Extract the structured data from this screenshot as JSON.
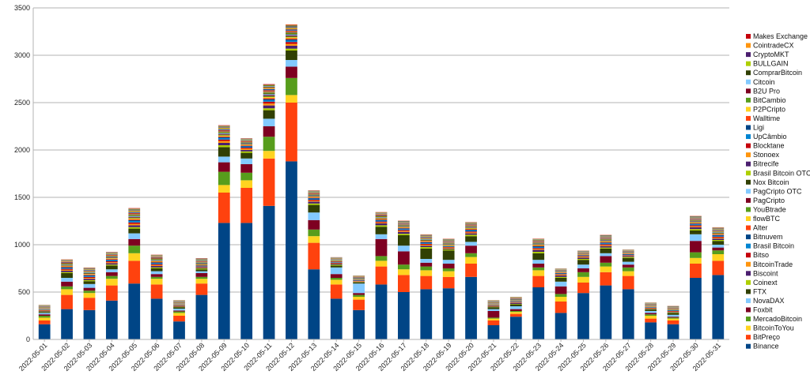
{
  "chart_data": {
    "type": "bar",
    "stacked": true,
    "title": "",
    "xlabel": "",
    "ylabel": "",
    "ylim": [
      0,
      3500
    ],
    "yticks": [
      0,
      500,
      1000,
      1500,
      2000,
      2500,
      3000,
      3500
    ],
    "grid": true,
    "legend_position": "right",
    "categories": [
      "2022-05-01",
      "2022-05-02",
      "2022-05-03",
      "2022-05-04",
      "2022-05-05",
      "2022-05-06",
      "2022-05-07",
      "2022-05-08",
      "2022-05-09",
      "2022-05-10",
      "2022-05-11",
      "2022-05-12",
      "2022-05-13",
      "2022-05-14",
      "2022-05-15",
      "2022-05-16",
      "2022-05-17",
      "2022-05-18",
      "2022-05-19",
      "2022-05-20",
      "2022-05-21",
      "2022-05-22",
      "2022-05-23",
      "2022-05-24",
      "2022-05-25",
      "2022-05-26",
      "2022-05-27",
      "2022-05-28",
      "2022-05-29",
      "2022-05-30",
      "2022-05-31"
    ],
    "series": [
      {
        "name": "Binance",
        "color": "#004586",
        "values": [
          160,
          320,
          310,
          410,
          590,
          430,
          190,
          470,
          1230,
          1230,
          1410,
          1880,
          740,
          430,
          310,
          580,
          500,
          530,
          540,
          660,
          150,
          240,
          550,
          280,
          490,
          570,
          530,
          180,
          160,
          650,
          680
        ]
      },
      {
        "name": "BitPreço",
        "color": "#ff420e",
        "values": [
          40,
          150,
          130,
          160,
          240,
          150,
          60,
          120,
          320,
          370,
          500,
          620,
          280,
          150,
          110,
          190,
          180,
          140,
          120,
          140,
          50,
          30,
          120,
          120,
          110,
          140,
          140,
          40,
          40,
          150,
          150
        ]
      },
      {
        "name": "BitcoinToYou",
        "color": "#ffd320",
        "values": [
          30,
          60,
          50,
          70,
          80,
          60,
          30,
          50,
          80,
          80,
          80,
          80,
          70,
          50,
          30,
          60,
          60,
          60,
          60,
          70,
          20,
          20,
          60,
          50,
          60,
          60,
          50,
          30,
          20,
          60,
          70
        ]
      },
      {
        "name": "MercadoBitcoin",
        "color": "#579d1c",
        "values": [
          20,
          30,
          25,
          30,
          80,
          20,
          15,
          20,
          140,
          80,
          150,
          180,
          70,
          20,
          20,
          50,
          50,
          40,
          30,
          40,
          10,
          10,
          30,
          30,
          50,
          40,
          40,
          15,
          10,
          60,
          40
        ]
      },
      {
        "name": "Foxbit",
        "color": "#7e0021",
        "values": [
          15,
          50,
          30,
          40,
          70,
          30,
          10,
          40,
          100,
          90,
          110,
          120,
          100,
          40,
          20,
          180,
          140,
          40,
          50,
          80,
          70,
          20,
          40,
          80,
          40,
          70,
          30,
          15,
          10,
          120,
          30
        ]
      },
      {
        "name": "NovaDAX",
        "color": "#83caff",
        "values": [
          15,
          40,
          40,
          30,
          60,
          30,
          20,
          20,
          60,
          60,
          80,
          70,
          80,
          70,
          100,
          50,
          60,
          40,
          40,
          40,
          20,
          30,
          40,
          50,
          40,
          30,
          30,
          20,
          20,
          70,
          30
        ]
      },
      {
        "name": "FTX",
        "color": "#314004",
        "values": [
          10,
          50,
          30,
          40,
          50,
          30,
          15,
          20,
          100,
          60,
          90,
          100,
          80,
          20,
          10,
          80,
          110,
          110,
          100,
          60,
          20,
          20,
          70,
          40,
          50,
          50,
          40,
          15,
          20,
          40,
          40
        ]
      },
      {
        "name": "Coinext",
        "color": "#aecf00",
        "values": [
          5,
          10,
          10,
          10,
          15,
          10,
          5,
          10,
          20,
          15,
          20,
          20,
          15,
          10,
          5,
          15,
          15,
          15,
          10,
          15,
          5,
          5,
          15,
          10,
          10,
          10,
          10,
          5,
          5,
          15,
          10
        ]
      },
      {
        "name": "Biscoint",
        "color": "#4b1f6f",
        "values": [
          5,
          15,
          15,
          15,
          20,
          15,
          5,
          10,
          25,
          15,
          30,
          30,
          20,
          10,
          5,
          20,
          20,
          15,
          10,
          15,
          5,
          10,
          20,
          15,
          15,
          15,
          10,
          5,
          5,
          20,
          15
        ]
      },
      {
        "name": "BitcoinTrade",
        "color": "#ff950e",
        "values": [
          5,
          10,
          10,
          10,
          15,
          10,
          5,
          5,
          20,
          15,
          20,
          20,
          10,
          5,
          5,
          10,
          10,
          10,
          10,
          10,
          5,
          5,
          10,
          10,
          10,
          10,
          5,
          5,
          5,
          10,
          10
        ]
      },
      {
        "name": "Bitso",
        "color": "#c5000b",
        "values": [
          5,
          10,
          10,
          10,
          15,
          10,
          5,
          5,
          15,
          10,
          20,
          20,
          10,
          5,
          5,
          10,
          10,
          10,
          5,
          10,
          5,
          5,
          10,
          5,
          5,
          10,
          5,
          5,
          5,
          10,
          10
        ]
      },
      {
        "name": "Brasil Bitcoin",
        "color": "#0084d1",
        "values": [
          5,
          10,
          10,
          10,
          15,
          10,
          5,
          5,
          15,
          10,
          15,
          15,
          10,
          5,
          5,
          10,
          10,
          10,
          5,
          10,
          5,
          5,
          10,
          5,
          5,
          10,
          5,
          5,
          5,
          10,
          10
        ]
      },
      {
        "name": "Bitnuvem",
        "color": "#004586",
        "values": [
          3,
          8,
          8,
          8,
          10,
          8,
          3,
          5,
          10,
          8,
          12,
          12,
          8,
          5,
          3,
          8,
          8,
          8,
          5,
          8,
          3,
          3,
          8,
          5,
          5,
          8,
          5,
          3,
          3,
          8,
          8
        ]
      },
      {
        "name": "Alter",
        "color": "#ff420e",
        "values": [
          3,
          8,
          8,
          8,
          10,
          8,
          3,
          5,
          10,
          8,
          12,
          12,
          8,
          5,
          3,
          8,
          8,
          8,
          5,
          8,
          3,
          3,
          8,
          5,
          5,
          8,
          5,
          3,
          3,
          8,
          8
        ]
      },
      {
        "name": "flowBTC",
        "color": "#ffd320",
        "values": [
          3,
          5,
          5,
          5,
          8,
          5,
          3,
          5,
          8,
          5,
          10,
          10,
          5,
          3,
          3,
          5,
          5,
          5,
          5,
          5,
          3,
          3,
          5,
          3,
          3,
          5,
          3,
          3,
          3,
          5,
          5
        ]
      },
      {
        "name": "YouBtrade",
        "color": "#579d1c",
        "values": [
          3,
          5,
          5,
          5,
          8,
          5,
          3,
          5,
          8,
          5,
          10,
          10,
          5,
          3,
          3,
          5,
          5,
          5,
          5,
          5,
          3,
          3,
          5,
          3,
          3,
          5,
          3,
          3,
          3,
          5,
          5
        ]
      },
      {
        "name": "PagCripto",
        "color": "#7e0021",
        "values": [
          3,
          5,
          5,
          5,
          8,
          5,
          3,
          5,
          8,
          5,
          10,
          10,
          5,
          3,
          3,
          5,
          5,
          5,
          5,
          5,
          3,
          3,
          5,
          3,
          3,
          5,
          3,
          3,
          3,
          5,
          5
        ]
      },
      {
        "name": "PagCripto OTC",
        "color": "#83caff",
        "values": [
          3,
          5,
          5,
          5,
          8,
          5,
          3,
          5,
          8,
          5,
          10,
          10,
          5,
          3,
          3,
          5,
          5,
          5,
          5,
          5,
          3,
          3,
          5,
          3,
          3,
          5,
          3,
          3,
          3,
          5,
          5
        ]
      },
      {
        "name": "Nox Bitcoin",
        "color": "#314004",
        "values": [
          3,
          5,
          5,
          5,
          8,
          5,
          3,
          5,
          8,
          5,
          10,
          10,
          5,
          3,
          3,
          5,
          5,
          5,
          5,
          5,
          3,
          3,
          5,
          3,
          3,
          5,
          3,
          3,
          3,
          5,
          5
        ]
      },
      {
        "name": "Brasil Bitcoin OTC",
        "color": "#aecf00",
        "values": [
          2,
          4,
          4,
          4,
          6,
          4,
          2,
          4,
          6,
          4,
          8,
          8,
          4,
          2,
          2,
          4,
          4,
          4,
          4,
          4,
          2,
          2,
          4,
          2,
          2,
          4,
          2,
          2,
          2,
          4,
          4
        ]
      },
      {
        "name": "Bitrecife",
        "color": "#4b1f6f",
        "values": [
          2,
          4,
          4,
          4,
          6,
          4,
          2,
          4,
          6,
          4,
          8,
          8,
          4,
          2,
          2,
          4,
          4,
          4,
          4,
          4,
          2,
          2,
          4,
          2,
          2,
          4,
          2,
          2,
          2,
          4,
          4
        ]
      },
      {
        "name": "Stonoex",
        "color": "#ff950e",
        "values": [
          2,
          4,
          4,
          4,
          6,
          4,
          2,
          4,
          6,
          4,
          8,
          8,
          4,
          2,
          2,
          4,
          4,
          4,
          4,
          4,
          2,
          2,
          4,
          2,
          2,
          4,
          2,
          2,
          2,
          4,
          4
        ]
      },
      {
        "name": "Blocktane",
        "color": "#c5000b",
        "values": [
          2,
          4,
          4,
          4,
          6,
          4,
          2,
          4,
          6,
          4,
          8,
          8,
          4,
          2,
          2,
          4,
          4,
          4,
          4,
          4,
          2,
          2,
          4,
          2,
          2,
          4,
          2,
          2,
          2,
          4,
          4
        ]
      },
      {
        "name": "UpCâmbio",
        "color": "#0084d1",
        "values": [
          2,
          3,
          3,
          3,
          5,
          3,
          2,
          3,
          5,
          3,
          6,
          6,
          3,
          2,
          2,
          3,
          3,
          3,
          3,
          3,
          2,
          2,
          3,
          2,
          2,
          3,
          2,
          2,
          2,
          3,
          3
        ]
      },
      {
        "name": "Ligi",
        "color": "#004586",
        "values": [
          2,
          3,
          3,
          3,
          5,
          3,
          2,
          3,
          5,
          3,
          6,
          6,
          3,
          2,
          2,
          3,
          3,
          3,
          3,
          3,
          2,
          2,
          3,
          2,
          2,
          3,
          2,
          2,
          2,
          3,
          3
        ]
      },
      {
        "name": "Walltime",
        "color": "#ff420e",
        "values": [
          2,
          3,
          3,
          3,
          5,
          3,
          2,
          3,
          5,
          3,
          6,
          6,
          3,
          2,
          2,
          3,
          3,
          3,
          3,
          3,
          2,
          2,
          3,
          2,
          2,
          3,
          2,
          2,
          2,
          3,
          3
        ]
      },
      {
        "name": "P2PCripto",
        "color": "#ffd320",
        "values": [
          2,
          3,
          3,
          3,
          5,
          3,
          2,
          3,
          5,
          3,
          6,
          6,
          3,
          2,
          2,
          3,
          3,
          3,
          3,
          3,
          2,
          2,
          3,
          2,
          2,
          3,
          2,
          2,
          2,
          3,
          3
        ]
      },
      {
        "name": "BitCambio",
        "color": "#579d1c",
        "values": [
          2,
          3,
          3,
          3,
          5,
          3,
          2,
          3,
          5,
          3,
          6,
          6,
          3,
          2,
          2,
          3,
          3,
          3,
          3,
          3,
          2,
          2,
          3,
          2,
          2,
          3,
          2,
          2,
          2,
          3,
          3
        ]
      },
      {
        "name": "B2U Pro",
        "color": "#7e0021",
        "values": [
          2,
          3,
          3,
          3,
          5,
          3,
          2,
          3,
          5,
          3,
          6,
          6,
          3,
          2,
          2,
          3,
          3,
          3,
          3,
          3,
          2,
          2,
          3,
          2,
          2,
          3,
          2,
          2,
          2,
          3,
          3
        ]
      },
      {
        "name": "Citcoin",
        "color": "#83caff",
        "values": [
          2,
          3,
          3,
          3,
          5,
          3,
          2,
          3,
          5,
          3,
          6,
          6,
          3,
          2,
          2,
          3,
          3,
          3,
          3,
          3,
          2,
          2,
          3,
          2,
          2,
          3,
          2,
          2,
          2,
          3,
          3
        ]
      },
      {
        "name": "ComprarBitcoin",
        "color": "#314004",
        "values": [
          2,
          3,
          3,
          3,
          5,
          3,
          2,
          3,
          5,
          3,
          6,
          6,
          3,
          2,
          2,
          3,
          3,
          3,
          3,
          3,
          2,
          2,
          3,
          2,
          2,
          3,
          2,
          2,
          2,
          3,
          3
        ]
      },
      {
        "name": "BULLGAIN",
        "color": "#aecf00",
        "values": [
          1,
          2,
          2,
          2,
          3,
          2,
          1,
          2,
          3,
          2,
          4,
          4,
          2,
          1,
          1,
          2,
          2,
          2,
          2,
          2,
          1,
          1,
          2,
          1,
          1,
          2,
          1,
          1,
          1,
          2,
          2
        ]
      },
      {
        "name": "CryptoMKT",
        "color": "#4b1f6f",
        "values": [
          1,
          2,
          2,
          2,
          3,
          2,
          1,
          2,
          3,
          2,
          4,
          4,
          2,
          1,
          1,
          2,
          2,
          2,
          2,
          2,
          1,
          1,
          2,
          1,
          1,
          2,
          1,
          1,
          1,
          2,
          2
        ]
      },
      {
        "name": "CointradeCX",
        "color": "#ff950e",
        "values": [
          1,
          2,
          2,
          2,
          3,
          2,
          1,
          2,
          3,
          2,
          4,
          4,
          2,
          1,
          1,
          2,
          2,
          2,
          2,
          2,
          1,
          1,
          2,
          1,
          1,
          2,
          1,
          1,
          1,
          2,
          2
        ]
      },
      {
        "name": "Makes Exchange",
        "color": "#c5000b",
        "values": [
          1,
          2,
          2,
          2,
          3,
          2,
          1,
          2,
          3,
          2,
          4,
          4,
          2,
          1,
          1,
          2,
          2,
          2,
          2,
          2,
          1,
          1,
          2,
          1,
          1,
          2,
          1,
          1,
          1,
          2,
          2
        ]
      }
    ]
  }
}
